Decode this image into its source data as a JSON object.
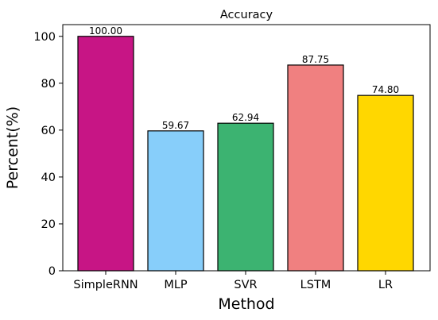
{
  "chart_data": {
    "type": "bar",
    "title": "Accuracy",
    "xlabel": "Method",
    "ylabel": "Percent(%)",
    "categories": [
      "SimpleRNN",
      "MLP",
      "SVR",
      "LSTM",
      "LR"
    ],
    "values": [
      100.0,
      59.67,
      62.94,
      87.75,
      74.8
    ],
    "value_labels": [
      "100.00",
      "59.67",
      "62.94",
      "87.75",
      "74.80"
    ],
    "colors": [
      "#c71585",
      "#87cefa",
      "#3cb371",
      "#f08080",
      "#ffd700"
    ],
    "ylim": [
      0,
      105
    ],
    "yticks": [
      0,
      20,
      40,
      60,
      80,
      100
    ],
    "grid": false,
    "legend": "none"
  }
}
